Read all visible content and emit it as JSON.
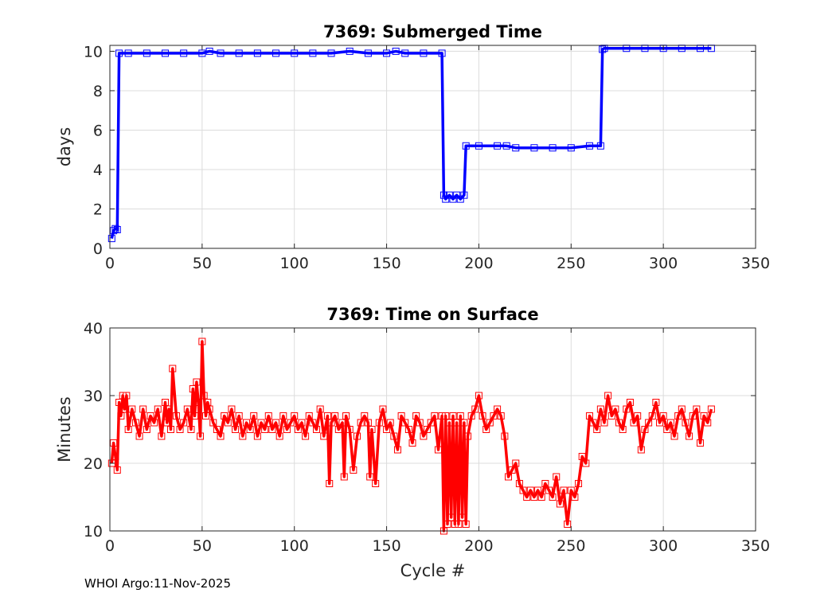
{
  "footer": "WHOI Argo:11-Nov-2025",
  "chart_data": [
    {
      "type": "line",
      "title": "7369: Submerged Time",
      "xlabel": "",
      "ylabel": "days",
      "xlim": [
        0,
        350
      ],
      "ylim": [
        0,
        10.3
      ],
      "xticks": [
        0,
        50,
        100,
        150,
        200,
        250,
        300,
        350
      ],
      "yticks": [
        0,
        2,
        4,
        6,
        8,
        10
      ],
      "grid": true,
      "color": "#0000ff",
      "marker": "square",
      "series": [
        {
          "name": "Submerged Time",
          "x": [
            1,
            2,
            3,
            4,
            5,
            10,
            20,
            30,
            40,
            50,
            54,
            60,
            70,
            80,
            90,
            100,
            110,
            120,
            130,
            140,
            150,
            155,
            160,
            170,
            180,
            181,
            182,
            184,
            186,
            188,
            190,
            192,
            193,
            200,
            210,
            215,
            220,
            230,
            240,
            250,
            260,
            266,
            267,
            268,
            280,
            290,
            300,
            310,
            320,
            326
          ],
          "y": [
            0.5,
            0.9,
            1.0,
            0.95,
            9.9,
            9.9,
            9.9,
            9.9,
            9.9,
            9.9,
            10.0,
            9.9,
            9.9,
            9.9,
            9.9,
            9.9,
            9.9,
            9.9,
            10.0,
            9.9,
            9.9,
            10.0,
            9.9,
            9.9,
            9.9,
            2.7,
            2.5,
            2.7,
            2.5,
            2.7,
            2.5,
            2.7,
            5.2,
            5.2,
            5.2,
            5.2,
            5.1,
            5.1,
            5.1,
            5.1,
            5.2,
            5.2,
            10.1,
            10.15,
            10.15,
            10.15,
            10.15,
            10.15,
            10.15,
            10.15
          ]
        }
      ]
    },
    {
      "type": "line",
      "title": "7369: Time on Surface",
      "xlabel": "Cycle #",
      "ylabel": "Minutes",
      "xlim": [
        0,
        350
      ],
      "ylim": [
        10,
        40
      ],
      "xticks": [
        0,
        50,
        100,
        150,
        200,
        250,
        300,
        350
      ],
      "yticks": [
        10,
        20,
        30,
        40
      ],
      "grid": true,
      "color": "#ff0000",
      "marker": "square",
      "series": [
        {
          "name": "Time on Surface",
          "x": [
            1,
            2,
            3,
            4,
            5,
            6,
            7,
            8,
            9,
            10,
            12,
            14,
            16,
            18,
            20,
            22,
            24,
            26,
            28,
            30,
            31,
            32,
            33,
            34,
            36,
            38,
            40,
            42,
            44,
            45,
            46,
            47,
            48,
            49,
            50,
            51,
            52,
            53,
            54,
            56,
            58,
            60,
            62,
            64,
            66,
            68,
            70,
            72,
            74,
            76,
            78,
            80,
            82,
            84,
            86,
            88,
            90,
            92,
            94,
            96,
            98,
            100,
            102,
            104,
            106,
            108,
            110,
            112,
            114,
            116,
            118,
            119,
            120,
            122,
            124,
            126,
            127,
            128,
            130,
            132,
            134,
            136,
            138,
            140,
            141,
            142,
            144,
            146,
            148,
            150,
            152,
            154,
            156,
            158,
            160,
            162,
            164,
            166,
            168,
            170,
            172,
            174,
            176,
            178,
            180,
            181,
            182,
            183,
            184,
            185,
            186,
            187,
            188,
            189,
            190,
            191,
            192,
            193,
            194,
            196,
            198,
            200,
            202,
            204,
            206,
            208,
            210,
            212,
            214,
            216,
            218,
            220,
            222,
            224,
            226,
            228,
            230,
            232,
            234,
            236,
            238,
            240,
            242,
            244,
            246,
            248,
            250,
            252,
            254,
            256,
            258,
            260,
            262,
            264,
            266,
            268,
            270,
            272,
            274,
            276,
            278,
            280,
            282,
            284,
            286,
            288,
            290,
            292,
            294,
            296,
            298,
            300,
            302,
            304,
            306,
            308,
            310,
            312,
            314,
            316,
            318,
            320,
            322,
            324,
            326
          ],
          "y": [
            20,
            23,
            21,
            19,
            29,
            27,
            30,
            28,
            30,
            25,
            28,
            26,
            24,
            28,
            25,
            27,
            26,
            28,
            24,
            29,
            26,
            28,
            25,
            34,
            27,
            25,
            26,
            28,
            25,
            31,
            27,
            32,
            29,
            24,
            38,
            30,
            27,
            29,
            28,
            26,
            25,
            24,
            27,
            26,
            28,
            25,
            27,
            24,
            26,
            25,
            27,
            24,
            26,
            25,
            27,
            25,
            26,
            24,
            27,
            25,
            26,
            27,
            25,
            26,
            24,
            27,
            26,
            25,
            28,
            24,
            27,
            17,
            26,
            27,
            25,
            26,
            18,
            27,
            25,
            19,
            24,
            26,
            27,
            26,
            18,
            25,
            17,
            26,
            28,
            25,
            26,
            24,
            22,
            27,
            26,
            25,
            23,
            27,
            26,
            24,
            25,
            26,
            27,
            22,
            27,
            10,
            27,
            11,
            26,
            12,
            27,
            11,
            26,
            11,
            27,
            12,
            26,
            11,
            24,
            27,
            28,
            30,
            27,
            25,
            26,
            27,
            28,
            27,
            24,
            18,
            19,
            20,
            17,
            16,
            15,
            16,
            15,
            16,
            15,
            17,
            16,
            15,
            18,
            14,
            16,
            11,
            16,
            15,
            17,
            21,
            20,
            27,
            26,
            25,
            28,
            26,
            30,
            27,
            28,
            26,
            25,
            28,
            29,
            26,
            27,
            22,
            25,
            26,
            27,
            29,
            26,
            27,
            25,
            26,
            24,
            27,
            28,
            26,
            24,
            27,
            28,
            23,
            27,
            26,
            28
          ]
        }
      ]
    }
  ]
}
